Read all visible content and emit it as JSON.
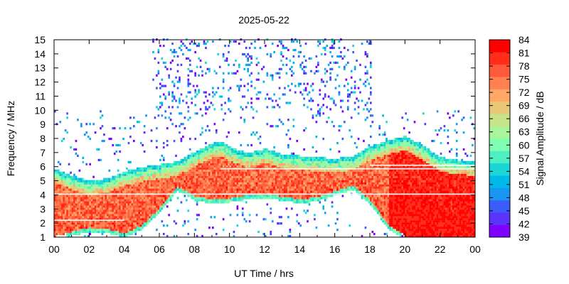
{
  "chart_data": {
    "type": "heatmap",
    "title": "2025-05-22",
    "xlabel": "UT Time / hrs",
    "ylabel": "Frequency / MHz",
    "colorbar_label": "Signal Amplitude / dB",
    "xlim": [
      0,
      24
    ],
    "ylim": [
      1,
      15
    ],
    "zlim": [
      39,
      84
    ],
    "x_ticks": [
      "00",
      "02",
      "04",
      "06",
      "08",
      "10",
      "12",
      "14",
      "16",
      "18",
      "20",
      "22",
      "00"
    ],
    "y_ticks": [
      "1",
      "2",
      "3",
      "4",
      "5",
      "6",
      "7",
      "8",
      "9",
      "10",
      "11",
      "12",
      "13",
      "14",
      "15"
    ],
    "colorbar_ticks": [
      "39",
      "42",
      "45",
      "48",
      "51",
      "54",
      "57",
      "60",
      "63",
      "66",
      "69",
      "72",
      "75",
      "78",
      "81",
      "84"
    ],
    "colormap": [
      "#8000ff",
      "#5a33fc",
      "#3a5cf8",
      "#1996f3",
      "#00b8e8",
      "#1ad6d6",
      "#4df0c0",
      "#80ffb4",
      "#a8f59a",
      "#c8e488",
      "#e8c878",
      "#ffa766",
      "#ff8050",
      "#ff5a3a",
      "#ff2d1a",
      "#ff0000"
    ],
    "extended_sweep_window_hours": [
      5.5,
      18
    ],
    "upper_boundary_profile": {
      "description": "Approximate top edge of the strong (>66 dB) reflection band in MHz",
      "time_hours": [
        0,
        1,
        2,
        3,
        4,
        5,
        6,
        7,
        8,
        9,
        9.5,
        10,
        11,
        12,
        13,
        14,
        15,
        16,
        17,
        18,
        19,
        20,
        21,
        22,
        23,
        24
      ],
      "freq_mhz": [
        5.5,
        5.0,
        4.6,
        4.8,
        5.3,
        5.6,
        5.8,
        6.0,
        6.7,
        7.3,
        7.4,
        7.0,
        6.6,
        6.9,
        6.5,
        6.4,
        6.3,
        6.2,
        6.4,
        7.1,
        7.5,
        7.8,
        7.1,
        6.3,
        6.1,
        6.0
      ]
    },
    "lower_boundary_profile": {
      "description": "Approximate bottom edge of the strong reflection band in MHz",
      "time_hours": [
        0,
        2,
        3,
        4,
        5,
        6,
        7,
        8,
        9,
        10,
        11,
        12,
        13,
        14,
        15,
        16,
        17,
        18,
        19,
        20,
        22,
        24
      ],
      "freq_mhz": [
        1.0,
        1.6,
        1.5,
        1.2,
        1.8,
        3.0,
        4.5,
        3.8,
        3.6,
        3.7,
        3.9,
        4.0,
        3.8,
        3.6,
        3.8,
        4.2,
        4.6,
        3.5,
        1.8,
        1.0,
        1.0,
        1.0
      ]
    }
  }
}
